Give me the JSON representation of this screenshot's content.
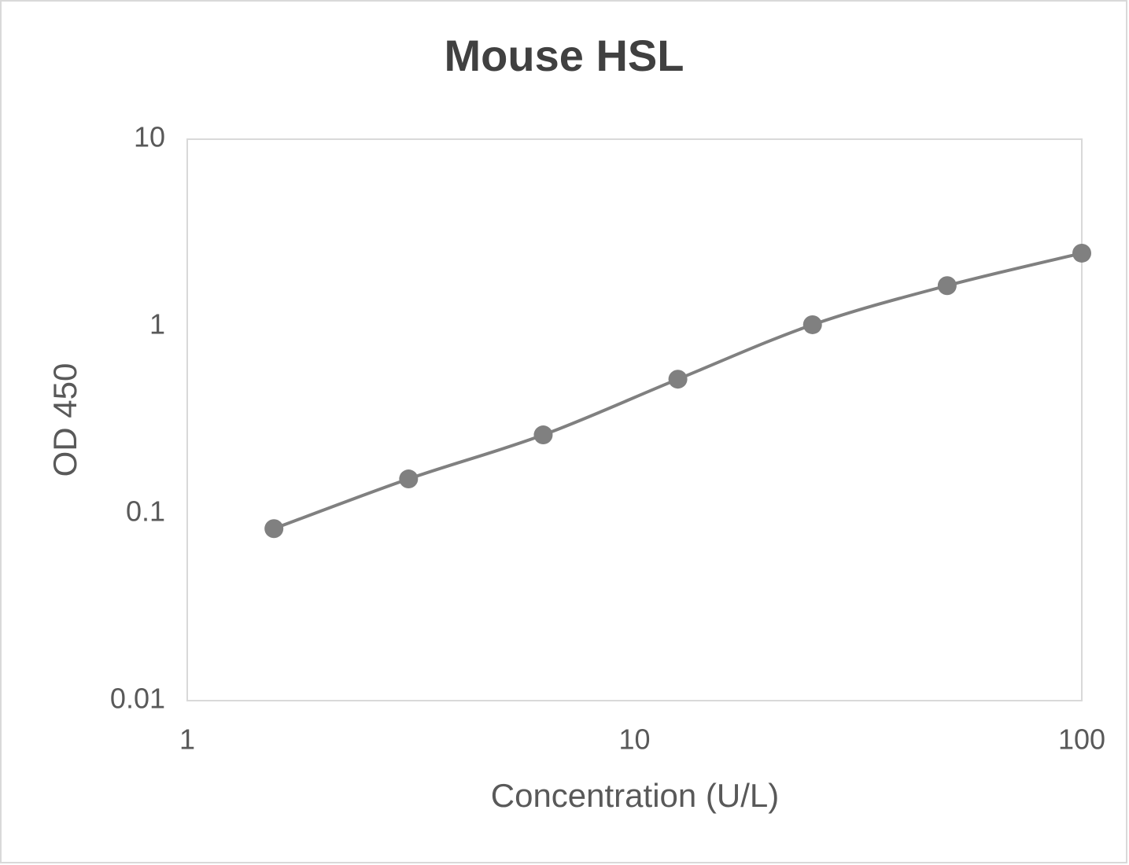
{
  "chart_data": {
    "type": "line",
    "title": "Mouse HSL",
    "x_label": "Concentration (U/L)",
    "y_label": "OD 450",
    "x": [
      1.5625,
      3.125,
      6.25,
      12.5,
      25,
      50,
      100
    ],
    "values": [
      0.083,
      0.153,
      0.263,
      0.522,
      1.02,
      1.65,
      2.46
    ],
    "color": "#808080",
    "markers": true,
    "smooth": true,
    "xscale": "log",
    "yscale": "log",
    "xlim": [
      1,
      100
    ],
    "xticks": [
      1,
      10,
      100
    ],
    "ylim": [
      0.01,
      10
    ],
    "yticks": [
      0.01,
      0.1,
      1,
      10
    ],
    "grid": false
  }
}
